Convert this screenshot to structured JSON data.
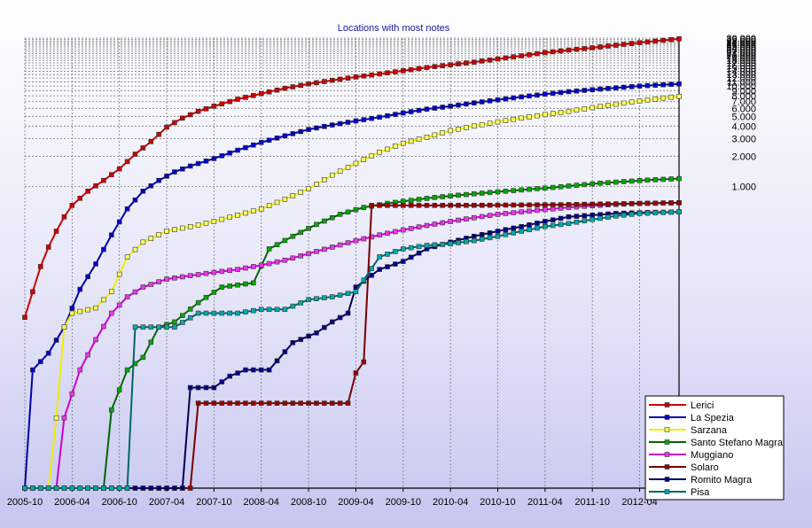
{
  "chart_data": {
    "type": "line",
    "title": "Locations with most notes",
    "xlabel": "",
    "ylabel": "",
    "y_scale": "log",
    "ylim": [
      1,
      30000
    ],
    "xlim": [
      "2005-10",
      "2012-09"
    ],
    "grid": true,
    "legend_position": "bottom-right",
    "x_tick_labels": [
      "2005-10",
      "2006-04",
      "2006-10",
      "2007-04",
      "2007-10",
      "2008-04",
      "2008-10",
      "2009-04",
      "2009-10",
      "2010-04",
      "2010-10",
      "2011-04",
      "2011-10",
      "2012-04"
    ],
    "y_tick_labels": [
      "1.000",
      "2.000",
      "3.000",
      "4.000",
      "5.000",
      "6.000",
      "7.000",
      "8.000",
      "9.000",
      "10.000",
      "11.000",
      "12.000",
      "13.000",
      "14.000",
      "15.000",
      "16.000",
      "17.000",
      "18.000",
      "19.000",
      "20.000",
      "21.000",
      "22.000",
      "23.000",
      "24.000",
      "25.000",
      "26.000",
      "27.000",
      "28.000",
      "29.000",
      "30.000"
    ],
    "series": [
      {
        "name": "Lerici",
        "color": "#cc0000",
        "fill": "#cc0000",
        "points": [
          [
            "2005-10",
            50
          ],
          [
            "2005-11",
            90
          ],
          [
            "2005-12",
            160
          ],
          [
            "2006-01",
            250
          ],
          [
            "2006-02",
            360
          ],
          [
            "2006-03",
            500
          ],
          [
            "2006-04",
            650
          ],
          [
            "2006-06",
            900
          ],
          [
            "2006-08",
            1150
          ],
          [
            "2006-10",
            1500
          ],
          [
            "2006-12",
            2100
          ],
          [
            "2007-02",
            2800
          ],
          [
            "2007-04",
            3900
          ],
          [
            "2007-06",
            4800
          ],
          [
            "2007-08",
            5600
          ],
          [
            "2007-10",
            6300
          ],
          [
            "2008-01",
            7400
          ],
          [
            "2008-04",
            8400
          ],
          [
            "2008-07",
            9500
          ],
          [
            "2008-10",
            10500
          ],
          [
            "2009-01",
            11400
          ],
          [
            "2009-04",
            12300
          ],
          [
            "2009-07",
            13200
          ],
          [
            "2009-10",
            14200
          ],
          [
            "2010-01",
            15300
          ],
          [
            "2010-04",
            16300
          ],
          [
            "2010-07",
            17300
          ],
          [
            "2010-10",
            18600
          ],
          [
            "2011-01",
            20000
          ],
          [
            "2011-04",
            21500
          ],
          [
            "2011-07",
            22800
          ],
          [
            "2011-10",
            24000
          ],
          [
            "2012-01",
            25500
          ],
          [
            "2012-04",
            27000
          ],
          [
            "2012-07",
            28500
          ],
          [
            "2012-09",
            29500
          ]
        ]
      },
      {
        "name": "La Spezia",
        "color": "#0000aa",
        "fill": "#0000cc",
        "points": [
          [
            "2005-10",
            0
          ],
          [
            "2005-11",
            15
          ],
          [
            "2006-01",
            22
          ],
          [
            "2006-03",
            40
          ],
          [
            "2006-05",
            95
          ],
          [
            "2006-07",
            170
          ],
          [
            "2006-09",
            330
          ],
          [
            "2006-11",
            600
          ],
          [
            "2007-01",
            900
          ],
          [
            "2007-03",
            1150
          ],
          [
            "2007-05",
            1400
          ],
          [
            "2007-07",
            1600
          ],
          [
            "2007-10",
            1900
          ],
          [
            "2008-01",
            2300
          ],
          [
            "2008-04",
            2750
          ],
          [
            "2008-07",
            3200
          ],
          [
            "2008-10",
            3700
          ],
          [
            "2009-01",
            4100
          ],
          [
            "2009-04",
            4500
          ],
          [
            "2009-07",
            4900
          ],
          [
            "2009-10",
            5400
          ],
          [
            "2010-01",
            5900
          ],
          [
            "2010-04",
            6300
          ],
          [
            "2010-07",
            6800
          ],
          [
            "2010-10",
            7300
          ],
          [
            "2011-01",
            7800
          ],
          [
            "2011-04",
            8300
          ],
          [
            "2011-07",
            8800
          ],
          [
            "2011-10",
            9200
          ],
          [
            "2012-01",
            9600
          ],
          [
            "2012-04",
            10000
          ],
          [
            "2012-07",
            10300
          ],
          [
            "2012-09",
            10500
          ]
        ]
      },
      {
        "name": "Sarzana",
        "color": "#eeee00",
        "fill": "#ffff66",
        "points": [
          [
            "2005-10",
            0
          ],
          [
            "2006-01",
            0
          ],
          [
            "2006-02",
            5
          ],
          [
            "2006-03",
            40
          ],
          [
            "2006-04",
            55
          ],
          [
            "2006-07",
            62
          ],
          [
            "2006-09",
            90
          ],
          [
            "2006-11",
            200
          ],
          [
            "2007-01",
            280
          ],
          [
            "2007-04",
            360
          ],
          [
            "2007-07",
            400
          ],
          [
            "2007-10",
            450
          ],
          [
            "2008-01",
            520
          ],
          [
            "2008-04",
            600
          ],
          [
            "2008-07",
            750
          ],
          [
            "2008-10",
            950
          ],
          [
            "2009-01",
            1300
          ],
          [
            "2009-04",
            1700
          ],
          [
            "2009-07",
            2200
          ],
          [
            "2009-10",
            2700
          ],
          [
            "2010-01",
            3100
          ],
          [
            "2010-04",
            3600
          ],
          [
            "2010-07",
            4000
          ],
          [
            "2010-10",
            4400
          ],
          [
            "2011-01",
            4800
          ],
          [
            "2011-04",
            5200
          ],
          [
            "2011-07",
            5600
          ],
          [
            "2011-10",
            6100
          ],
          [
            "2012-01",
            6600
          ],
          [
            "2012-04",
            7100
          ],
          [
            "2012-07",
            7600
          ],
          [
            "2012-09",
            7900
          ]
        ]
      },
      {
        "name": "Santo Stefano Magra",
        "color": "#006600",
        "fill": "#00aa00",
        "points": [
          [
            "2005-10",
            0
          ],
          [
            "2006-08",
            0
          ],
          [
            "2006-09",
            6
          ],
          [
            "2006-11",
            15
          ],
          [
            "2007-01",
            20
          ],
          [
            "2007-03",
            40
          ],
          [
            "2007-05",
            45
          ],
          [
            "2007-08",
            70
          ],
          [
            "2007-11",
            100
          ],
          [
            "2008-03",
            110
          ],
          [
            "2008-05",
            240
          ],
          [
            "2008-08",
            320
          ],
          [
            "2008-11",
            420
          ],
          [
            "2009-02",
            530
          ],
          [
            "2009-05",
            620
          ],
          [
            "2009-08",
            680
          ],
          [
            "2009-11",
            730
          ],
          [
            "2010-02",
            780
          ],
          [
            "2010-05",
            820
          ],
          [
            "2010-08",
            860
          ],
          [
            "2010-11",
            900
          ],
          [
            "2011-02",
            940
          ],
          [
            "2011-05",
            980
          ],
          [
            "2011-08",
            1030
          ],
          [
            "2011-11",
            1080
          ],
          [
            "2012-02",
            1120
          ],
          [
            "2012-05",
            1160
          ],
          [
            "2012-09",
            1200
          ]
        ]
      },
      {
        "name": "Muggiano",
        "color": "#cc00cc",
        "fill": "#ee33ee",
        "points": [
          [
            "2005-10",
            0
          ],
          [
            "2006-02",
            0
          ],
          [
            "2006-03",
            5
          ],
          [
            "2006-05",
            15
          ],
          [
            "2006-07",
            30
          ],
          [
            "2006-09",
            55
          ],
          [
            "2006-11",
            80
          ],
          [
            "2007-01",
            100
          ],
          [
            "2007-04",
            120
          ],
          [
            "2007-07",
            130
          ],
          [
            "2007-10",
            140
          ],
          [
            "2008-01",
            150
          ],
          [
            "2008-04",
            165
          ],
          [
            "2008-07",
            185
          ],
          [
            "2008-10",
            215
          ],
          [
            "2009-01",
            250
          ],
          [
            "2009-04",
            290
          ],
          [
            "2009-07",
            330
          ],
          [
            "2009-10",
            370
          ],
          [
            "2010-01",
            410
          ],
          [
            "2010-04",
            450
          ],
          [
            "2010-07",
            490
          ],
          [
            "2010-10",
            530
          ],
          [
            "2011-01",
            560
          ],
          [
            "2011-04",
            590
          ],
          [
            "2011-07",
            620
          ],
          [
            "2011-10",
            645
          ],
          [
            "2012-01",
            665
          ],
          [
            "2012-04",
            680
          ],
          [
            "2012-09",
            690
          ]
        ]
      },
      {
        "name": "Solaro",
        "color": "#770000",
        "fill": "#990000",
        "points": [
          [
            "2005-10",
            0
          ],
          [
            "2007-07",
            0
          ],
          [
            "2007-08",
            7
          ],
          [
            "2008-04",
            7
          ],
          [
            "2009-03",
            7
          ],
          [
            "2009-04",
            14
          ],
          [
            "2009-05",
            18
          ],
          [
            "2009-06",
            650
          ],
          [
            "2010-06",
            650
          ],
          [
            "2011-06",
            660
          ],
          [
            "2012-04",
            680
          ],
          [
            "2012-09",
            690
          ]
        ]
      },
      {
        "name": "Romito Magra",
        "color": "#000055",
        "fill": "#000088",
        "points": [
          [
            "2005-10",
            0
          ],
          [
            "2007-06",
            0
          ],
          [
            "2007-07",
            10
          ],
          [
            "2007-10",
            10
          ],
          [
            "2007-12",
            13
          ],
          [
            "2008-02",
            15
          ],
          [
            "2008-05",
            15
          ],
          [
            "2008-08",
            28
          ],
          [
            "2008-11",
            35
          ],
          [
            "2009-01",
            45
          ],
          [
            "2009-03",
            55
          ],
          [
            "2009-04",
            100
          ],
          [
            "2009-07",
            150
          ],
          [
            "2009-10",
            180
          ],
          [
            "2010-01",
            240
          ],
          [
            "2010-04",
            280
          ],
          [
            "2010-07",
            320
          ],
          [
            "2010-10",
            360
          ],
          [
            "2011-01",
            400
          ],
          [
            "2011-04",
            450
          ],
          [
            "2011-07",
            500
          ],
          [
            "2011-10",
            520
          ],
          [
            "2012-01",
            540
          ],
          [
            "2012-04",
            550
          ],
          [
            "2012-09",
            560
          ]
        ]
      },
      {
        "name": "Pisa",
        "color": "#006666",
        "fill": "#00aaaa",
        "points": [
          [
            "2005-10",
            0
          ],
          [
            "2006-11",
            0
          ],
          [
            "2006-12",
            40
          ],
          [
            "2007-05",
            40
          ],
          [
            "2007-08",
            55
          ],
          [
            "2008-01",
            55
          ],
          [
            "2008-04",
            60
          ],
          [
            "2008-07",
            60
          ],
          [
            "2008-10",
            75
          ],
          [
            "2009-01",
            80
          ],
          [
            "2009-04",
            90
          ],
          [
            "2009-07",
            200
          ],
          [
            "2009-10",
            240
          ],
          [
            "2010-01",
            260
          ],
          [
            "2010-04",
            270
          ],
          [
            "2010-07",
            290
          ],
          [
            "2010-10",
            320
          ],
          [
            "2011-01",
            360
          ],
          [
            "2011-04",
            400
          ],
          [
            "2011-07",
            430
          ],
          [
            "2011-10",
            470
          ],
          [
            "2012-01",
            510
          ],
          [
            "2012-04",
            540
          ],
          [
            "2012-09",
            560
          ]
        ]
      }
    ]
  }
}
